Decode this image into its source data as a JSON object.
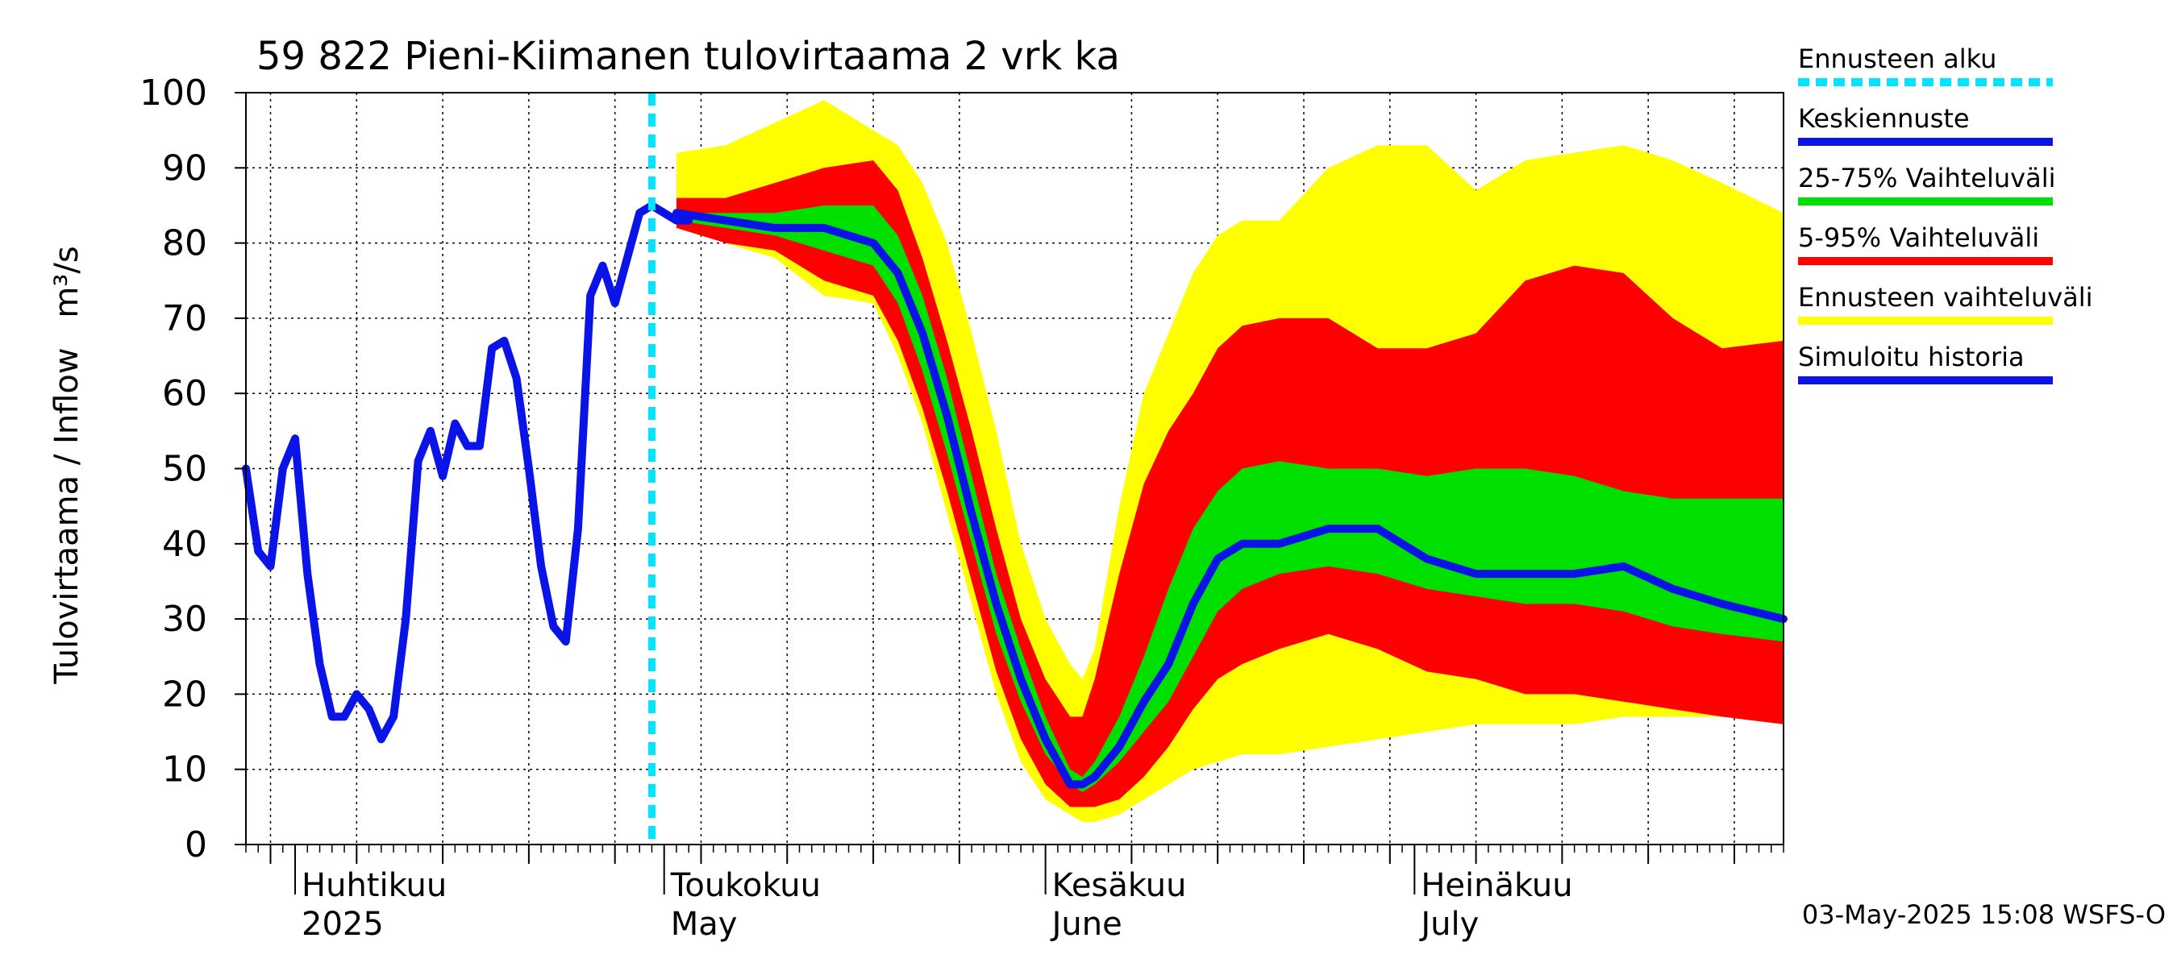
{
  "chart_data": {
    "type": "area",
    "title": "59 822 Pieni-Kiimanen tulovirtaama 2 vrk ka",
    "ylabel": "Tulovirtaama / Inflow",
    "yunit": "m³/s",
    "ylim": [
      0,
      100
    ],
    "yticks": [
      "0",
      "10",
      "20",
      "30",
      "40",
      "50",
      "60",
      "70",
      "80",
      "90",
      "100"
    ],
    "xlim": [
      "2025-03-28",
      "2025-07-31"
    ],
    "grid": true,
    "legend_position": "right",
    "month_labels": [
      {
        "line1": "Huhtikuu",
        "line2": "2025",
        "date": "2025-04-01"
      },
      {
        "line1": "Toukokuu",
        "line2": "May",
        "date": "2025-05-01"
      },
      {
        "line1": "Kesäkuu",
        "line2": "June",
        "date": "2025-06-01"
      },
      {
        "line1": "Heinäkuu",
        "line2": "July",
        "date": "2025-07-01"
      }
    ],
    "forecast_start": "2025-04-30",
    "legend": [
      {
        "label": "Ennusteen alku",
        "color": "#00e5ff",
        "style": "dashed"
      },
      {
        "label": "Keskiennuste",
        "color": "#0a14e6",
        "style": "solid"
      },
      {
        "label": "25-75% Vaihteluväli",
        "color": "#00e000",
        "style": "solid"
      },
      {
        "label": "5-95% Vaihteluväli",
        "color": "#ff0000",
        "style": "solid"
      },
      {
        "label": "Ennusteen vaihteluväli",
        "color": "#ffff00",
        "style": "solid"
      },
      {
        "label": "Simuloitu historia",
        "color": "#0a14e6",
        "style": "solid"
      }
    ],
    "history": {
      "x": [
        "2025-03-28",
        "2025-03-29",
        "2025-03-30",
        "2025-03-31",
        "2025-04-01",
        "2025-04-02",
        "2025-04-03",
        "2025-04-04",
        "2025-04-05",
        "2025-04-06",
        "2025-04-07",
        "2025-04-08",
        "2025-04-09",
        "2025-04-10",
        "2025-04-11",
        "2025-04-12",
        "2025-04-13",
        "2025-04-14",
        "2025-04-15",
        "2025-04-16",
        "2025-04-17",
        "2025-04-18",
        "2025-04-19",
        "2025-04-20",
        "2025-04-21",
        "2025-04-22",
        "2025-04-23",
        "2025-04-24",
        "2025-04-25",
        "2025-04-26",
        "2025-04-27",
        "2025-04-28",
        "2025-04-29",
        "2025-04-30",
        "2025-05-01",
        "2025-05-02",
        "2025-05-03"
      ],
      "y": [
        50,
        39,
        37,
        50,
        54,
        36,
        24,
        17,
        17,
        20,
        18,
        14,
        17,
        30,
        51,
        55,
        49,
        56,
        53,
        53,
        66,
        67,
        62,
        50,
        37,
        29,
        27,
        42,
        73,
        77,
        72,
        78,
        84,
        85,
        84,
        83,
        83
      ]
    },
    "forecast": {
      "x": [
        "2025-05-02",
        "2025-05-06",
        "2025-05-10",
        "2025-05-14",
        "2025-05-18",
        "2025-05-20",
        "2025-05-22",
        "2025-05-24",
        "2025-05-26",
        "2025-05-28",
        "2025-05-30",
        "2025-06-01",
        "2025-06-03",
        "2025-06-04",
        "2025-06-05",
        "2025-06-07",
        "2025-06-09",
        "2025-06-11",
        "2025-06-13",
        "2025-06-15",
        "2025-06-17",
        "2025-06-20",
        "2025-06-24",
        "2025-06-28",
        "2025-07-02",
        "2025-07-06",
        "2025-07-10",
        "2025-07-14",
        "2025-07-18",
        "2025-07-22",
        "2025-07-26",
        "2025-07-31"
      ],
      "p50": [
        84,
        83,
        82,
        82,
        80,
        76,
        68,
        57,
        44,
        32,
        22,
        14,
        8,
        8,
        9,
        13,
        19,
        24,
        32,
        38,
        40,
        40,
        42,
        42,
        38,
        36,
        36,
        36,
        37,
        34,
        32,
        30
      ],
      "p25": [
        83,
        82,
        81,
        79,
        77,
        72,
        63,
        52,
        40,
        28,
        19,
        12,
        8,
        7,
        8,
        11,
        15,
        19,
        25,
        31,
        34,
        36,
        37,
        36,
        34,
        33,
        32,
        32,
        31,
        29,
        28,
        27
      ],
      "p75": [
        84,
        84,
        84,
        85,
        85,
        81,
        73,
        62,
        49,
        36,
        26,
        17,
        10,
        9,
        11,
        17,
        25,
        34,
        42,
        47,
        50,
        51,
        50,
        50,
        49,
        50,
        50,
        49,
        47,
        46,
        46,
        46
      ],
      "p05": [
        82,
        80,
        79,
        75,
        73,
        67,
        58,
        47,
        35,
        23,
        14,
        8,
        5,
        5,
        5,
        6,
        9,
        13,
        18,
        22,
        24,
        26,
        28,
        26,
        23,
        22,
        20,
        20,
        19,
        18,
        17,
        16
      ],
      "p95": [
        86,
        86,
        88,
        90,
        91,
        87,
        78,
        67,
        55,
        42,
        30,
        22,
        17,
        17,
        22,
        36,
        48,
        55,
        60,
        66,
        69,
        70,
        70,
        66,
        66,
        68,
        75,
        77,
        76,
        70,
        66,
        67
      ],
      "min": [
        82,
        80,
        78,
        73,
        72,
        65,
        56,
        44,
        32,
        20,
        11,
        6,
        4,
        3,
        3,
        4,
        6,
        8,
        10,
        11,
        12,
        12,
        13,
        14,
        15,
        16,
        16,
        16,
        17,
        17,
        17,
        16
      ],
      "max": [
        92,
        93,
        96,
        99,
        95,
        93,
        88,
        80,
        68,
        55,
        40,
        30,
        24,
        22,
        26,
        45,
        60,
        68,
        76,
        81,
        83,
        83,
        90,
        93,
        93,
        87,
        91,
        92,
        93,
        91,
        88,
        84
      ]
    }
  },
  "footer": {
    "timestamp": "03-May-2025 15:08 WSFS-O"
  }
}
